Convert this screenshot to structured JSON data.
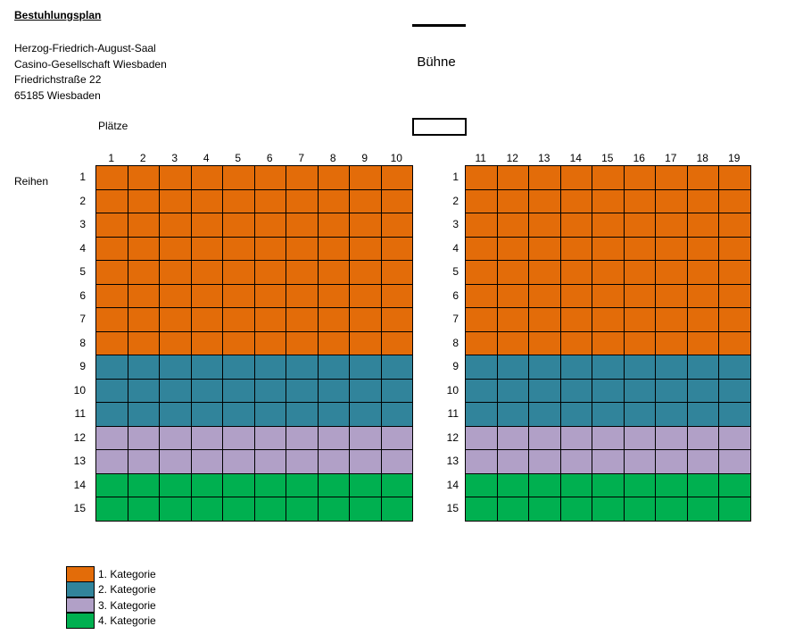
{
  "title": "Bestuhlungsplan",
  "address": [
    "Herzog-Friedrich-August-Saal",
    "Casino-Gesellschaft Wiesbaden",
    "Friedrichstraße 22",
    "65185 Wiesbaden"
  ],
  "stage_label": "Bühne",
  "seats_label": "Plätze",
  "rows_label": "Reihen",
  "left_block_seats": [
    "1",
    "2",
    "3",
    "4",
    "5",
    "6",
    "7",
    "8",
    "9",
    "10"
  ],
  "right_block_seats": [
    "11",
    "12",
    "13",
    "14",
    "15",
    "16",
    "17",
    "18",
    "19"
  ],
  "rows": [
    "1",
    "2",
    "3",
    "4",
    "5",
    "6",
    "7",
    "8",
    "9",
    "10",
    "11",
    "12",
    "13",
    "14",
    "15"
  ],
  "row_categories": [
    1,
    1,
    1,
    1,
    1,
    1,
    1,
    1,
    2,
    2,
    2,
    3,
    3,
    4,
    4
  ],
  "categories": [
    {
      "label": "1. Kategorie",
      "color": "#E36C09"
    },
    {
      "label": "2. Kategorie",
      "color": "#31849B"
    },
    {
      "label": "3. Kategorie",
      "color": "#B1A0C7"
    },
    {
      "label": "4. Kategorie",
      "color": "#00B050"
    }
  ]
}
